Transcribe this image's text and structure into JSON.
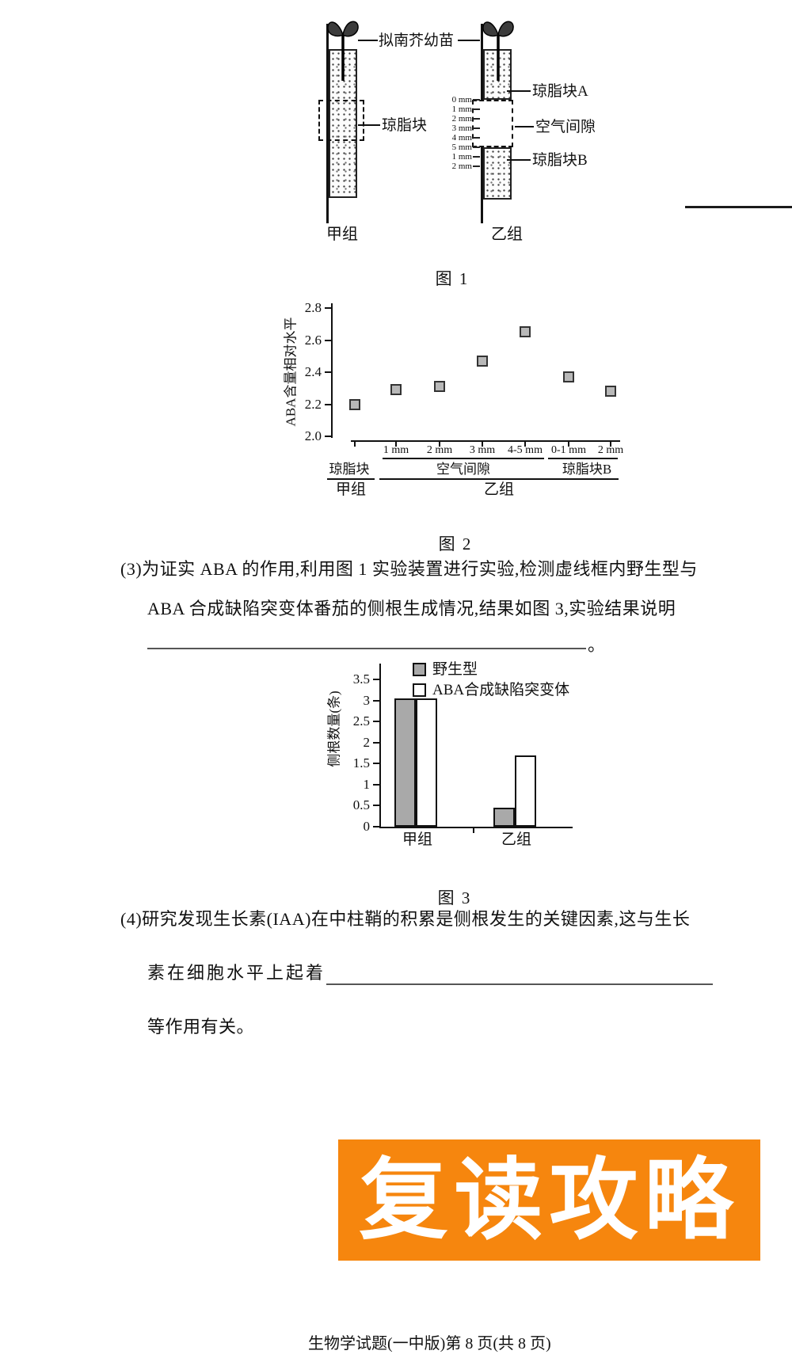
{
  "page": {
    "footer_text": "生物学试题(一中版)第 8 页(共 8 页)"
  },
  "banner": {
    "text": "复读攻略",
    "bg_color": "#F6860E",
    "text_color": "#ffffff"
  },
  "figure1": {
    "caption": "图 1",
    "seedling_label": "拟南芥幼苗",
    "agar_label": "琼脂块",
    "agar_a_label": "琼脂块A",
    "air_gap_label": "空气间隙",
    "agar_b_label": "琼脂块B",
    "group_left": "甲组",
    "group_right": "乙组",
    "mm_labels": [
      "0 mm",
      "1 mm",
      "2 mm",
      "3 mm",
      "4 mm",
      "5 mm",
      "1 mm",
      "2 mm"
    ]
  },
  "questions": {
    "q3_line1": "(3)为证实 ABA 的作用,利用图 1 实验装置进行实验,检测虚线框内野生型与",
    "q3_line2": "ABA 合成缺陷突变体番茄的侧根生成情况,结果如图 3,实验结果说明",
    "q3_blank_end": "。",
    "q4_line1": "(4)研究发现生长素(IAA)在中柱鞘的积累是侧根发生的关键因素,这与生长",
    "q4_line2": "素在细胞水平上起着",
    "q4_line3": "等作用有关。"
  },
  "chart_data": [
    {
      "id": "figure2",
      "type": "scatter",
      "caption": "图 2",
      "ylabel": "ABA含量相对水平",
      "ylim": [
        2.0,
        2.8
      ],
      "yticks": [
        "2.0",
        "2.2",
        "2.4",
        "2.6",
        "2.8"
      ],
      "x_tick_labels": [
        "",
        "1 mm",
        "2 mm",
        "3 mm",
        "4-5 mm",
        "0-1 mm",
        "2 mm"
      ],
      "values": [
        2.2,
        2.29,
        2.31,
        2.47,
        2.65,
        2.37,
        2.28
      ],
      "sections": [
        {
          "label": "琼脂块"
        },
        {
          "label": "空气间隙"
        },
        {
          "label": "琼脂块B"
        }
      ],
      "groups": [
        {
          "label": "甲组"
        },
        {
          "label": "乙组"
        }
      ],
      "point_color": "#b8b8b8",
      "point_border": "#333333",
      "legend_position": "none",
      "grid": false
    },
    {
      "id": "figure3",
      "type": "bar",
      "caption": "图 3",
      "ylabel": "侧根数量(条)",
      "ylim": [
        0,
        3.5
      ],
      "yticks": [
        "0",
        "0.5",
        "1",
        "1.5",
        "2",
        "2.5",
        "3",
        "3.5"
      ],
      "categories": [
        "甲组",
        "乙组"
      ],
      "series": [
        {
          "name": "野生型",
          "values": [
            3.05,
            0.45
          ],
          "fill": "#a9a9a9"
        },
        {
          "name": "ABA合成缺陷突变体",
          "values": [
            3.05,
            1.7
          ],
          "fill": "#ffffff"
        }
      ],
      "legend_position": "top-right-inside",
      "grid": false
    }
  ]
}
